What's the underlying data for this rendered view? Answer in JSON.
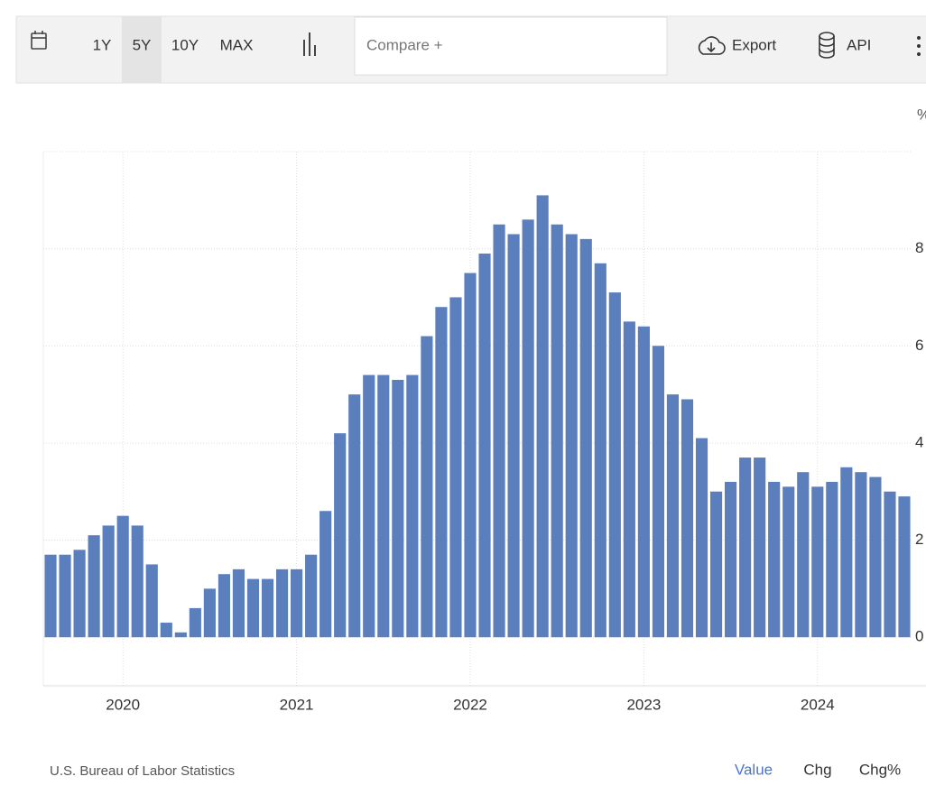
{
  "toolbar": {
    "ranges": [
      "1Y",
      "5Y",
      "10Y",
      "MAX"
    ],
    "selected_range": "5Y",
    "compare": "Compare +",
    "export": "Export",
    "api": "API"
  },
  "chart_data": {
    "type": "bar",
    "unit": "%",
    "categories": [
      null,
      null,
      null,
      null,
      null,
      "2020",
      null,
      null,
      null,
      null,
      null,
      null,
      null,
      null,
      null,
      null,
      null,
      "2021",
      null,
      null,
      null,
      null,
      null,
      null,
      null,
      null,
      null,
      null,
      null,
      "2022",
      null,
      null,
      null,
      null,
      null,
      null,
      null,
      null,
      null,
      null,
      null,
      "2023",
      null,
      null,
      null,
      null,
      null,
      null,
      null,
      null,
      null,
      null,
      null,
      "2024",
      null,
      null,
      null,
      null,
      null,
      null
    ],
    "values": [
      1.7,
      1.7,
      1.8,
      2.1,
      2.3,
      2.5,
      2.3,
      1.5,
      0.3,
      0.1,
      0.6,
      1.0,
      1.3,
      1.4,
      1.2,
      1.2,
      1.4,
      1.4,
      1.7,
      2.6,
      4.2,
      5.0,
      5.4,
      5.4,
      5.3,
      5.4,
      6.2,
      6.8,
      7.0,
      7.5,
      7.9,
      8.5,
      8.3,
      8.6,
      9.1,
      8.5,
      8.3,
      8.2,
      7.7,
      7.1,
      6.5,
      6.4,
      6.0,
      5.0,
      4.9,
      4.1,
      3.0,
      3.2,
      3.7,
      3.7,
      3.2,
      3.1,
      3.4,
      3.1,
      3.2,
      3.5,
      3.4,
      3.3,
      3.0,
      2.9
    ],
    "color": "#5b7fbd",
    "ylim": [
      -1,
      10
    ],
    "yticks": [
      0,
      2,
      4,
      6,
      8
    ],
    "grid": true
  },
  "footer": {
    "source": "U.S. Bureau of Labor Statistics",
    "tabs": [
      "Value",
      "Chg",
      "Chg%"
    ],
    "active_tab": "Value"
  }
}
